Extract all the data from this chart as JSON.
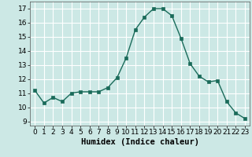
{
  "x": [
    0,
    1,
    2,
    3,
    4,
    5,
    6,
    7,
    8,
    9,
    10,
    11,
    12,
    13,
    14,
    15,
    16,
    17,
    18,
    19,
    20,
    21,
    22,
    23
  ],
  "y": [
    11.2,
    10.3,
    10.7,
    10.4,
    11.0,
    11.1,
    11.1,
    11.1,
    11.4,
    12.1,
    13.5,
    15.5,
    16.4,
    17.0,
    17.0,
    16.5,
    14.9,
    13.1,
    12.2,
    11.8,
    11.9,
    10.4,
    9.6,
    9.2
  ],
  "xlabel": "Humidex (Indice chaleur)",
  "xlim": [
    -0.5,
    23.5
  ],
  "ylim": [
    8.7,
    17.5
  ],
  "yticks": [
    9,
    10,
    11,
    12,
    13,
    14,
    15,
    16,
    17
  ],
  "xticks": [
    0,
    1,
    2,
    3,
    4,
    5,
    6,
    7,
    8,
    9,
    10,
    11,
    12,
    13,
    14,
    15,
    16,
    17,
    18,
    19,
    20,
    21,
    22,
    23
  ],
  "line_color": "#1a6b5a",
  "marker_color": "#1a6b5a",
  "bg_color": "#cce8e5",
  "grid_color": "#ffffff",
  "xlabel_fontsize": 7.5,
  "tick_fontsize": 6.5,
  "linewidth": 1.0,
  "markersize": 2.5
}
